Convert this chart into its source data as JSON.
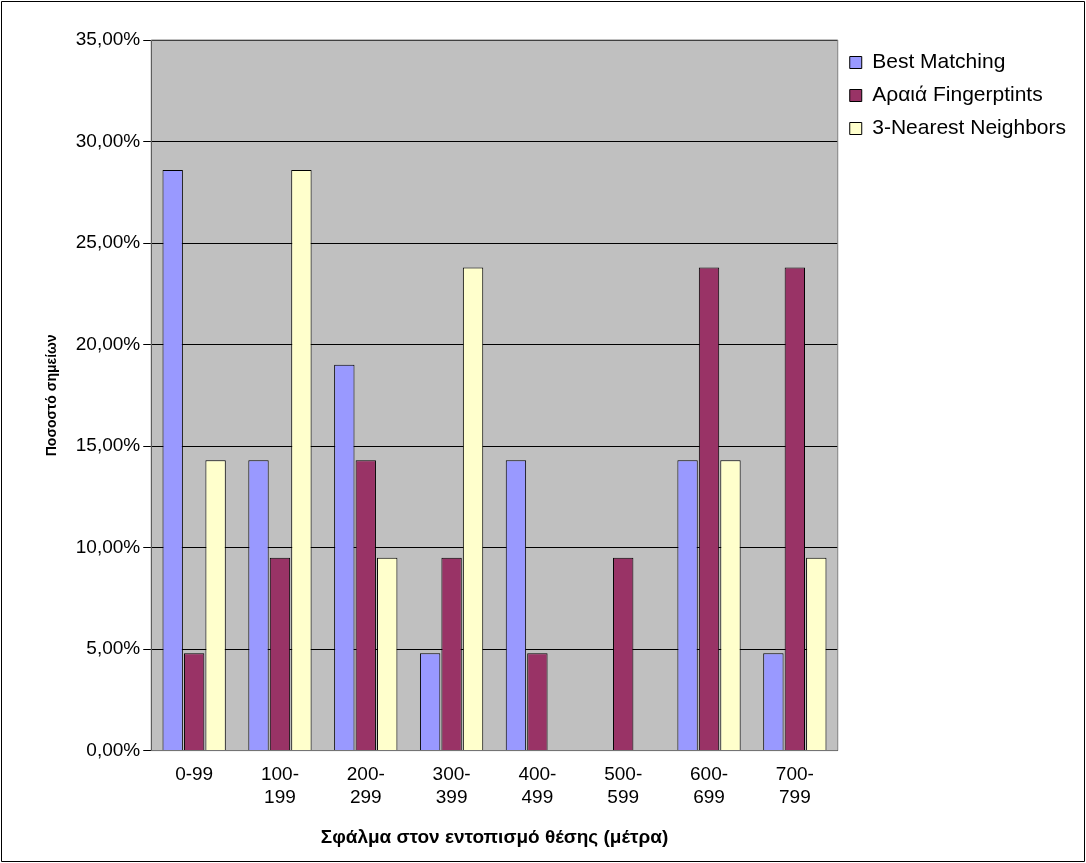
{
  "chart_data": {
    "type": "bar",
    "xlabel": "Σφάλμα στον εντοπισμό θέσης (μέτρα)",
    "ylabel": "Ποσοστό σημείων",
    "categories": [
      "0-99",
      "100-199",
      "200-299",
      "300-399",
      "400-499",
      "500-599",
      "600-699",
      "700-799"
    ],
    "series": [
      {
        "name": "Best Matching",
        "color": "#9999ff",
        "values": [
          28.6,
          14.3,
          19.0,
          4.8,
          14.3,
          0,
          14.3,
          4.8
        ]
      },
      {
        "name": "Αραιά Fingerptints",
        "color": "#993366",
        "values": [
          4.8,
          9.5,
          14.3,
          9.5,
          4.8,
          9.5,
          23.8,
          23.8
        ]
      },
      {
        "name": "3-Nearest Neighbors",
        "color": "#ffffcc",
        "values": [
          14.3,
          28.6,
          9.5,
          23.8,
          0,
          0,
          14.3,
          9.5
        ]
      }
    ],
    "ylim": [
      0,
      35
    ],
    "yticks": [
      {
        "value": 0,
        "label": "0,00%"
      },
      {
        "value": 5,
        "label": "5,00%"
      },
      {
        "value": 10,
        "label": "10,00%"
      },
      {
        "value": 15,
        "label": "15,00%"
      },
      {
        "value": 20,
        "label": "20,00%"
      },
      {
        "value": 25,
        "label": "25,00%"
      },
      {
        "value": 30,
        "label": "30,00%"
      },
      {
        "value": 35,
        "label": "35,00%"
      }
    ],
    "grid": "y",
    "legend": "top right"
  }
}
